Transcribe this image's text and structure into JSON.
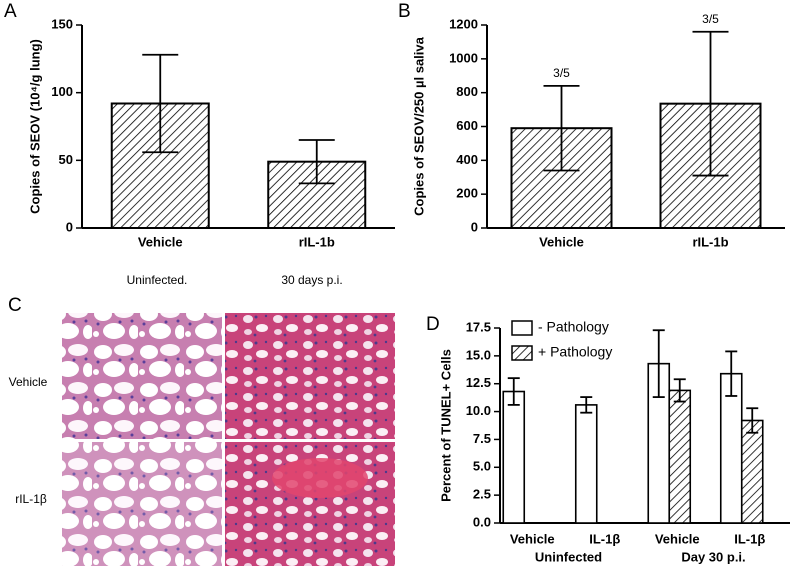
{
  "chart_data": [
    {
      "type": "bar",
      "label": "A",
      "ylabel": "Copies of SEOV (10⁴/g lung)",
      "categories": [
        "Vehicle",
        "rIL-1b"
      ],
      "values": [
        92,
        49
      ],
      "errors": [
        36,
        16
      ],
      "color": "#000000",
      "fill": "hatched",
      "ylim": [
        0,
        150
      ],
      "yticks": [
        0,
        50,
        100,
        150
      ]
    },
    {
      "type": "bar",
      "label": "B",
      "ylabel": "Copies of SEOV/250 µl saliva",
      "categories": [
        "Vehicle",
        "rIL-1b"
      ],
      "values": [
        590,
        735
      ],
      "errors": [
        250,
        425
      ],
      "annotations": [
        "3/5",
        "3/5"
      ],
      "color": "#000000",
      "fill": "hatched",
      "ylim": [
        0,
        1200
      ],
      "yticks": [
        0,
        200,
        400,
        600,
        800,
        1000,
        1200
      ]
    },
    {
      "type": "grouped_bar",
      "label": "D",
      "ylabel": "Percent of TUNEL+ Cells",
      "categories": [
        "Vehicle",
        "IL-1β",
        "Vehicle",
        "IL-1β"
      ],
      "groups": [
        "Uninfected",
        "Day 30 p.i."
      ],
      "series": [
        {
          "name": "- Pathology",
          "color": "#ffffff",
          "fill": "solid",
          "values": [
            11.8,
            10.6,
            14.3,
            13.4
          ],
          "errors": [
            1.2,
            0.7,
            3.0,
            2.0
          ]
        },
        {
          "name": "+ Pathology",
          "color": "#ffffff",
          "fill": "hatched",
          "values": [
            null,
            null,
            11.9,
            9.2
          ],
          "errors": [
            null,
            null,
            1.0,
            1.1
          ]
        }
      ],
      "ylim": [
        0,
        17.5
      ],
      "yticks": [
        {
          "value": 0,
          "label": "0.0"
        },
        2.5,
        {
          "value": 5,
          "label": "5.0"
        },
        7.5,
        {
          "value": 10,
          "label": "10.0"
        },
        12.5,
        {
          "value": 15,
          "label": "15.0"
        },
        17.5
      ],
      "legend": "upper-left"
    }
  ],
  "micrographs": {
    "label": "C",
    "columns": [
      "Uninfected.",
      "30 days p.i."
    ],
    "rows": [
      "Vehicle",
      "rIL-1β"
    ]
  }
}
